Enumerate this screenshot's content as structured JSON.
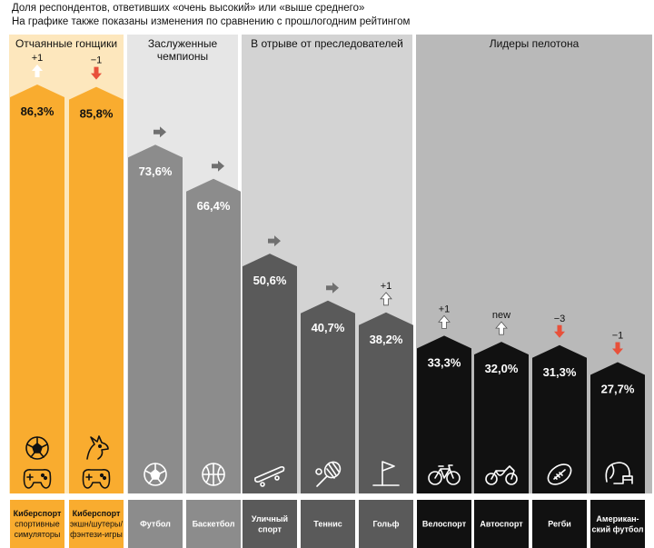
{
  "subtitle_lines": [
    "Доля респондентов, ответивших «очень высокий» или «выше среднего»",
    "На графике также показаны изменения по сравнению с прошлогодним рейтингом"
  ],
  "colors": {
    "orange_panel": "#fde7bd",
    "orange_bar": "#f9ac2f",
    "grey_panel_1": "#e6e6e6",
    "grey_bar_1": "#8c8c8c",
    "grey_panel_2": "#d3d3d3",
    "grey_bar_2": "#5a5a5a",
    "dark_panel": "#b9b9b9",
    "dark_bar": "#111111",
    "decline_arrow": "#e8503a",
    "neutral_arrow": "#707070"
  },
  "chart_data": {
    "type": "bar",
    "ylim": [
      0,
      100
    ],
    "groups": [
      {
        "title": "Отчаянные гонщики",
        "theme": "orange"
      },
      {
        "title": "Заслуженные чемпионы",
        "theme": "grey1"
      },
      {
        "title": "В отрыве от преследователей",
        "theme": "grey2"
      },
      {
        "title": "Лидеры пелотона",
        "theme": "dark"
      }
    ],
    "bars": [
      {
        "value": 86.3,
        "value_label": "86,3%",
        "change": "+1",
        "direction": "up",
        "icon": "soccer-ball-icon",
        "icon2": "gamepad-icon",
        "label": "Киберспорт",
        "sublabel": "спортивные симуляторы",
        "group": 0
      },
      {
        "value": 85.8,
        "value_label": "85,8%",
        "change": "−1",
        "direction": "down",
        "icon": "dragon-icon",
        "icon2": "gamepad-icon",
        "label": "Киберспорт",
        "sublabel": "экшн/шутеры/ фэнтези-игры",
        "group": 0
      },
      {
        "value": 73.6,
        "value_label": "73,6%",
        "change": "",
        "direction": "same",
        "icon": "soccer-ball-icon",
        "label": "Футбол",
        "sublabel": "",
        "group": 1
      },
      {
        "value": 66.4,
        "value_label": "66,4%",
        "change": "",
        "direction": "same",
        "icon": "basketball-icon",
        "label": "Баскетбол",
        "sublabel": "",
        "group": 1
      },
      {
        "value": 50.6,
        "value_label": "50,6%",
        "change": "",
        "direction": "same",
        "icon": "skateboard-icon",
        "label": "Уличный спорт",
        "sublabel": "",
        "group": 2
      },
      {
        "value": 40.7,
        "value_label": "40,7%",
        "change": "",
        "direction": "same",
        "icon": "tennis-racket-icon",
        "label": "Теннис",
        "sublabel": "",
        "group": 2
      },
      {
        "value": 38.2,
        "value_label": "38,2%",
        "change": "+1",
        "direction": "up",
        "icon": "golf-flag-icon",
        "label": "Гольф",
        "sublabel": "",
        "group": 2
      },
      {
        "value": 33.3,
        "value_label": "33,3%",
        "change": "+1",
        "direction": "up",
        "icon": "bicycle-icon",
        "label": "Велоспорт",
        "sublabel": "",
        "group": 3
      },
      {
        "value": 32.0,
        "value_label": "32,0%",
        "change": "new",
        "direction": "up",
        "icon": "motorcycle-icon",
        "label": "Автоспорт",
        "sublabel": "",
        "group": 3
      },
      {
        "value": 31.3,
        "value_label": "31,3%",
        "change": "−3",
        "direction": "down",
        "icon": "rugby-ball-icon",
        "label": "Регби",
        "sublabel": "",
        "group": 3
      },
      {
        "value": 27.7,
        "value_label": "27,7%",
        "change": "−1",
        "direction": "down",
        "icon": "football-helmet-icon",
        "label": "Американ-ский футбол",
        "sublabel": "",
        "group": 3
      }
    ]
  }
}
